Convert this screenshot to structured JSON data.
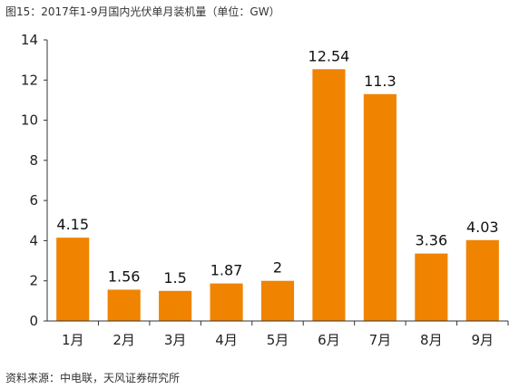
{
  "caption": "图15：2017年1-9月国内光伏单月装机量（单位：GW）",
  "source": "资料来源：中电联，天风证券研究所",
  "colors": {
    "bar": "#F08300",
    "axis": "#333333"
  },
  "chart_data": {
    "type": "bar",
    "title": "图15：2017年1-9月国内光伏单月装机量（单位：GW）",
    "xlabel": "",
    "ylabel": "",
    "categories": [
      "1月",
      "2月",
      "3月",
      "4月",
      "5月",
      "6月",
      "7月",
      "8月",
      "9月"
    ],
    "values": [
      4.15,
      1.56,
      1.5,
      1.87,
      2,
      12.54,
      11.3,
      3.36,
      4.03
    ],
    "value_labels": [
      "4.15",
      "1.56",
      "1.5",
      "1.87",
      "2",
      "12.54",
      "11.3",
      "3.36",
      "4.03"
    ],
    "ylim": [
      0,
      14
    ],
    "yticks": [
      0,
      2,
      4,
      6,
      8,
      10,
      12,
      14
    ],
    "grid": false,
    "legend": "none"
  }
}
